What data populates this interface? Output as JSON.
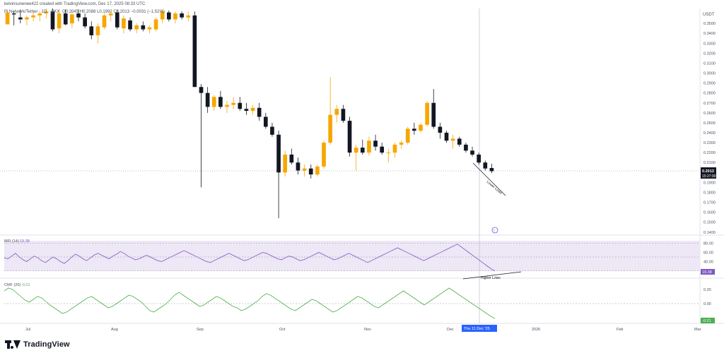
{
  "header": {
    "credit": "kelvinsunenee422 created with TradingView.com, Dec 17, 2025 08:33 UTC",
    "symbol": "Pi Network/Tether · 1D · OKX",
    "ohlc": "O0.2045 H0.2088 L0.1992 C0.2013 −0.0031 (−1.52%)"
  },
  "colors": {
    "up": "#f7a600",
    "down": "#131722",
    "mfi_line": "#7e57c2",
    "mfi_band": "#ede7f6",
    "cmf_line": "#4caf50",
    "cmf_label": "#4caf50",
    "price_label": "#131722",
    "mfi_label": "#7e57c2",
    "date_label": "#2962ff"
  },
  "chart_data": [
    {
      "type": "candlestick",
      "title": "Pi Network/Tether · 1D · OKX",
      "currency": "USDT",
      "ylim": [
        0.137,
        0.365
      ],
      "y_ticks": [
        "0.3500",
        "0.3400",
        "0.3300",
        "0.3200",
        "0.3100",
        "0.3000",
        "0.2900",
        "0.2800",
        "0.2700",
        "0.2600",
        "0.2500",
        "0.2400",
        "0.2300",
        "0.2200",
        "0.2100",
        "0.2000",
        "0.1900",
        "0.1800",
        "0.1700",
        "0.1600",
        "0.1500",
        "0.1400"
      ],
      "last_price": "0.2013",
      "countdown": "15:27:00",
      "annotation": "Lower Lows",
      "candles_ohlc": [
        [
          0.349,
          0.362,
          0.352,
          0.361
        ],
        [
          0.36,
          0.362,
          0.348,
          0.359
        ],
        [
          0.356,
          0.364,
          0.35,
          0.354
        ],
        [
          0.354,
          0.358,
          0.348,
          0.356
        ],
        [
          0.356,
          0.362,
          0.352,
          0.358
        ],
        [
          0.358,
          0.362,
          0.352,
          0.36
        ],
        [
          0.36,
          0.365,
          0.355,
          0.362
        ],
        [
          0.362,
          0.365,
          0.342,
          0.344
        ],
        [
          0.345,
          0.364,
          0.34,
          0.36
        ],
        [
          0.36,
          0.364,
          0.348,
          0.349
        ],
        [
          0.35,
          0.362,
          0.345,
          0.359
        ],
        [
          0.36,
          0.364,
          0.352,
          0.356
        ],
        [
          0.356,
          0.36,
          0.345,
          0.347
        ],
        [
          0.347,
          0.352,
          0.334,
          0.338
        ],
        [
          0.338,
          0.35,
          0.33,
          0.347
        ],
        [
          0.346,
          0.36,
          0.344,
          0.358
        ],
        [
          0.358,
          0.362,
          0.352,
          0.36
        ],
        [
          0.361,
          0.364,
          0.344,
          0.346
        ],
        [
          0.345,
          0.358,
          0.34,
          0.355
        ],
        [
          0.353,
          0.356,
          0.342,
          0.344
        ],
        [
          0.344,
          0.35,
          0.34,
          0.348
        ],
        [
          0.348,
          0.352,
          0.342,
          0.344
        ],
        [
          0.344,
          0.348,
          0.34,
          0.346
        ],
        [
          0.344,
          0.356,
          0.342,
          0.354
        ],
        [
          0.354,
          0.364,
          0.35,
          0.362
        ],
        [
          0.361,
          0.363,
          0.352,
          0.354
        ],
        [
          0.354,
          0.362,
          0.35,
          0.36
        ],
        [
          0.36,
          0.362,
          0.354,
          0.356
        ],
        [
          0.356,
          0.362,
          0.352,
          0.358
        ],
        [
          0.358,
          0.362,
          0.328,
          0.286
        ],
        [
          0.286,
          0.289,
          0.185,
          0.28
        ],
        [
          0.28,
          0.286,
          0.26,
          0.266
        ],
        [
          0.266,
          0.278,
          0.262,
          0.276
        ],
        [
          0.276,
          0.282,
          0.264,
          0.266
        ],
        [
          0.266,
          0.272,
          0.26,
          0.268
        ],
        [
          0.268,
          0.276,
          0.264,
          0.27
        ],
        [
          0.27,
          0.276,
          0.262,
          0.264
        ],
        [
          0.264,
          0.27,
          0.258,
          0.262
        ],
        [
          0.262,
          0.268,
          0.258,
          0.265
        ],
        [
          0.265,
          0.27,
          0.252,
          0.256
        ],
        [
          0.256,
          0.26,
          0.244,
          0.246
        ],
        [
          0.246,
          0.25,
          0.236,
          0.238
        ],
        [
          0.238,
          0.242,
          0.154,
          0.2
        ],
        [
          0.2,
          0.222,
          0.196,
          0.218
        ],
        [
          0.218,
          0.224,
          0.208,
          0.21
        ],
        [
          0.21,
          0.215,
          0.198,
          0.202
        ],
        [
          0.202,
          0.208,
          0.196,
          0.204
        ],
        [
          0.204,
          0.208,
          0.194,
          0.198
        ],
        [
          0.198,
          0.208,
          0.196,
          0.206
        ],
        [
          0.206,
          0.232,
          0.204,
          0.23
        ],
        [
          0.23,
          0.296,
          0.228,
          0.258
        ],
        [
          0.258,
          0.268,
          0.25,
          0.264
        ],
        [
          0.264,
          0.268,
          0.25,
          0.252
        ],
        [
          0.252,
          0.256,
          0.216,
          0.22
        ],
        [
          0.22,
          0.228,
          0.202,
          0.225
        ],
        [
          0.225,
          0.233,
          0.218,
          0.22
        ],
        [
          0.22,
          0.236,
          0.217,
          0.232
        ],
        [
          0.232,
          0.238,
          0.222,
          0.226
        ],
        [
          0.226,
          0.23,
          0.218,
          0.22
        ],
        [
          0.22,
          0.224,
          0.21,
          0.22
        ],
        [
          0.22,
          0.23,
          0.215,
          0.228
        ],
        [
          0.228,
          0.232,
          0.224,
          0.23
        ],
        [
          0.23,
          0.246,
          0.228,
          0.244
        ],
        [
          0.244,
          0.25,
          0.238,
          0.242
        ],
        [
          0.242,
          0.25,
          0.24,
          0.248
        ],
        [
          0.248,
          0.272,
          0.246,
          0.27
        ],
        [
          0.27,
          0.284,
          0.244,
          0.246
        ],
        [
          0.246,
          0.25,
          0.234,
          0.24
        ],
        [
          0.24,
          0.242,
          0.23,
          0.232
        ],
        [
          0.232,
          0.238,
          0.224,
          0.234
        ],
        [
          0.234,
          0.236,
          0.226,
          0.228
        ],
        [
          0.228,
          0.23,
          0.22,
          0.222
        ],
        [
          0.222,
          0.226,
          0.216,
          0.218
        ],
        [
          0.218,
          0.22,
          0.208,
          0.21
        ],
        [
          0.21,
          0.212,
          0.202,
          0.204
        ],
        [
          0.2045,
          0.2088,
          0.1992,
          0.2013
        ]
      ]
    },
    {
      "type": "line",
      "title": "MFI (14)",
      "current_value": "19.38",
      "y_ticks": [
        "80.00",
        "60.00",
        "40.00"
      ],
      "ylim": [
        10,
        90
      ],
      "bands": [
        20,
        50,
        80
      ],
      "annotation": "Higher Lows",
      "values": [
        48,
        46,
        52,
        58,
        50,
        44,
        40,
        46,
        52,
        48,
        42,
        38,
        44,
        50,
        46,
        40,
        36,
        42,
        50,
        56,
        52,
        46,
        42,
        48,
        54,
        58,
        54,
        50,
        46,
        52,
        56,
        62,
        58,
        52,
        48,
        44,
        46,
        50,
        54,
        50,
        46,
        42,
        40,
        44,
        48,
        52,
        56,
        60,
        64,
        60,
        56,
        52,
        48,
        44,
        40,
        38,
        42,
        46,
        50,
        54,
        58,
        54,
        50,
        46,
        42,
        44,
        48,
        52,
        56,
        60,
        58,
        54,
        50,
        46,
        44,
        48,
        52,
        50,
        46,
        42,
        44,
        48,
        52,
        56,
        60,
        56,
        52,
        48,
        44,
        46,
        50,
        54,
        58,
        54,
        50,
        46,
        42,
        38,
        42,
        46,
        50,
        54,
        58,
        62,
        66,
        70,
        66,
        62,
        58,
        54,
        50,
        46,
        42,
        46,
        50,
        54,
        58,
        62,
        66,
        70,
        74,
        78,
        72,
        66,
        60,
        54,
        48,
        42,
        36,
        30,
        24,
        19.38
      ]
    },
    {
      "type": "line",
      "title": "CMF (20)",
      "current_value": "-0.21",
      "y_ticks": [
        "0.20",
        "0.00"
      ],
      "ylim": [
        -0.26,
        0.3
      ],
      "zero_line": 0,
      "values": [
        0.18,
        0.22,
        0.2,
        0.15,
        0.1,
        0.05,
        0.02,
        0.06,
        0.1,
        0.08,
        0.03,
        -0.02,
        -0.06,
        -0.1,
        -0.14,
        -0.12,
        -0.08,
        -0.04,
        0.0,
        0.04,
        0.08,
        0.1,
        0.06,
        0.02,
        -0.02,
        -0.06,
        -0.04,
        0.0,
        0.04,
        0.08,
        0.12,
        0.1,
        0.06,
        0.02,
        -0.04,
        -0.1,
        -0.12,
        -0.08,
        -0.04,
        0.0,
        0.06,
        0.12,
        0.16,
        0.12,
        0.08,
        0.04,
        0.0,
        -0.04,
        -0.02,
        0.02,
        0.06,
        0.1,
        0.08,
        0.04,
        0.0,
        -0.04,
        -0.06,
        -0.1,
        -0.08,
        -0.04,
        0.0,
        0.04,
        0.1,
        0.14,
        0.12,
        0.08,
        0.04,
        0.0,
        -0.04,
        -0.08,
        -0.1,
        -0.06,
        -0.02,
        0.02,
        0.06,
        0.04,
        0.0,
        -0.04,
        -0.08,
        -0.12,
        -0.1,
        -0.06,
        -0.02,
        0.02,
        0.06,
        0.1,
        0.08,
        0.04,
        0.0,
        -0.04,
        -0.06,
        -0.02,
        0.02,
        0.06,
        0.1,
        0.14,
        0.18,
        0.14,
        0.1,
        0.06,
        0.02,
        -0.02,
        0.02,
        0.06,
        0.1,
        0.14,
        0.18,
        0.22,
        0.18,
        0.14,
        0.1,
        0.06,
        0.02,
        -0.02,
        -0.06,
        -0.1,
        -0.14,
        -0.18,
        -0.21
      ]
    }
  ],
  "x_axis": {
    "labels": [
      "Jul",
      "Aug",
      "Sep",
      "Oct",
      "Nov",
      "Dec",
      "2026",
      "Feb",
      "Mar"
    ],
    "crosshair_label": "Thu 11 Dec '25"
  },
  "footer": {
    "brand": "TradingView"
  }
}
